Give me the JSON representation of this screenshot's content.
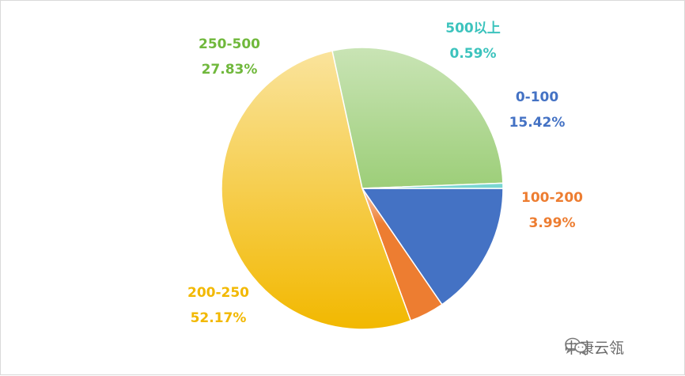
{
  "chart_data": {
    "type": "pie",
    "title": "",
    "categories": [
      "0-100",
      "100-200",
      "200-250",
      "250-500",
      "500以上"
    ],
    "values": [
      15.42,
      3.99,
      52.17,
      27.83,
      0.59
    ],
    "labels": [
      "15.42%",
      "3.99%",
      "52.17%",
      "27.83%",
      "0.59%"
    ],
    "colors": [
      "#4472c4",
      "#ed7d31",
      "#f2b800",
      "#70b83c",
      "#3cc3bd"
    ],
    "start_angle_deg": 0,
    "direction": "clockwise",
    "legend": "none"
  },
  "watermark": {
    "text": "中康云瓴",
    "icon": "wechat-icon"
  }
}
